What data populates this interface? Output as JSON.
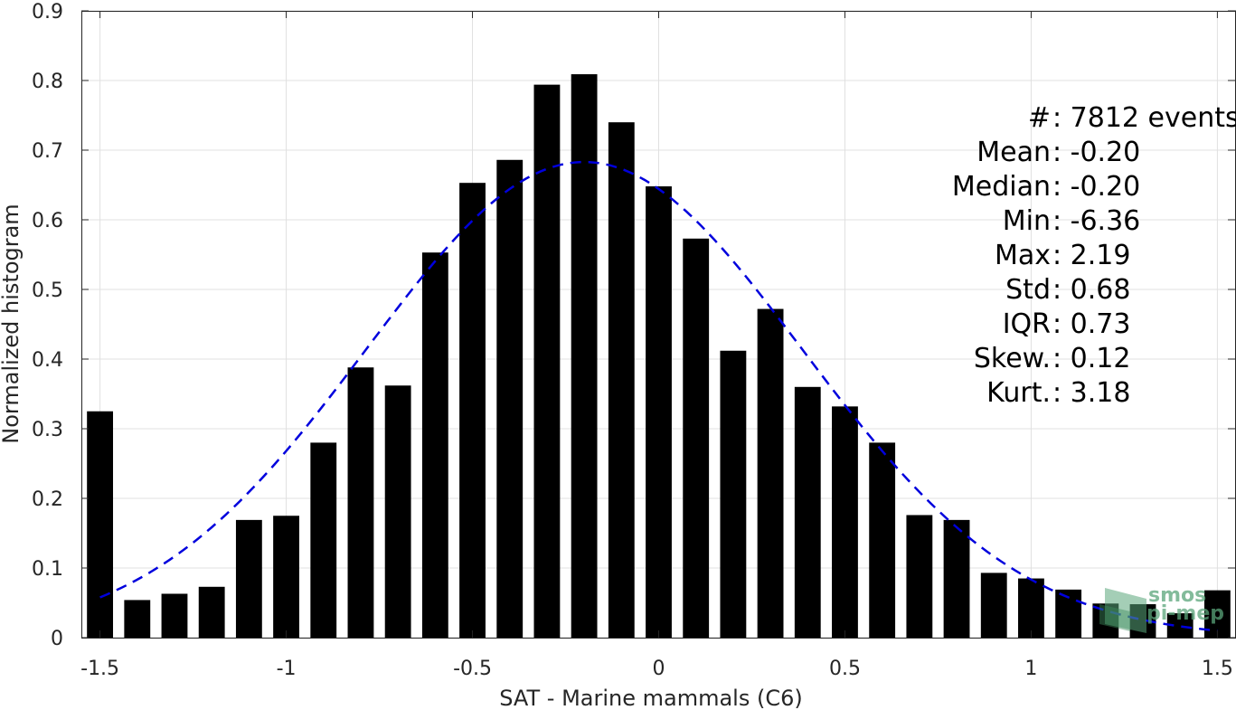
{
  "chart_data": {
    "type": "bar",
    "title": "",
    "xlabel": "SAT - Marine mammals (C6)",
    "ylabel": "Normalized histogram",
    "xlim": [
      -1.55,
      1.55
    ],
    "ylim": [
      0,
      0.9
    ],
    "grid": true,
    "x_ticks": [
      -1.5,
      -1,
      -0.5,
      0,
      0.5,
      1,
      1.5
    ],
    "x_tick_labels": [
      "-1.5",
      "-1",
      "-0.5",
      "0",
      "0.5",
      "1",
      "1.5"
    ],
    "y_ticks": [
      0,
      0.1,
      0.2,
      0.3,
      0.4,
      0.5,
      0.6,
      0.7,
      0.8,
      0.9
    ],
    "y_tick_labels": [
      "0",
      "0.1",
      "0.2",
      "0.3",
      "0.4",
      "0.5",
      "0.6",
      "0.7",
      "0.8",
      "0.9"
    ],
    "bar_width": 0.07,
    "bar_color": "#000000",
    "bars": [
      {
        "x": -1.5,
        "y": 0.325
      },
      {
        "x": -1.4,
        "y": 0.054
      },
      {
        "x": -1.3,
        "y": 0.063
      },
      {
        "x": -1.2,
        "y": 0.073
      },
      {
        "x": -1.1,
        "y": 0.169
      },
      {
        "x": -1.0,
        "y": 0.175
      },
      {
        "x": -0.9,
        "y": 0.28
      },
      {
        "x": -0.8,
        "y": 0.388
      },
      {
        "x": -0.7,
        "y": 0.362
      },
      {
        "x": -0.6,
        "y": 0.553
      },
      {
        "x": -0.5,
        "y": 0.653
      },
      {
        "x": -0.4,
        "y": 0.686
      },
      {
        "x": -0.3,
        "y": 0.794
      },
      {
        "x": -0.2,
        "y": 0.809
      },
      {
        "x": -0.1,
        "y": 0.74
      },
      {
        "x": 0.0,
        "y": 0.648
      },
      {
        "x": 0.1,
        "y": 0.573
      },
      {
        "x": 0.2,
        "y": 0.412
      },
      {
        "x": 0.3,
        "y": 0.472
      },
      {
        "x": 0.4,
        "y": 0.36
      },
      {
        "x": 0.5,
        "y": 0.332
      },
      {
        "x": 0.6,
        "y": 0.28
      },
      {
        "x": 0.7,
        "y": 0.176
      },
      {
        "x": 0.8,
        "y": 0.169
      },
      {
        "x": 0.9,
        "y": 0.093
      },
      {
        "x": 1.0,
        "y": 0.085
      },
      {
        "x": 1.1,
        "y": 0.069
      },
      {
        "x": 1.2,
        "y": 0.049
      },
      {
        "x": 1.3,
        "y": 0.048
      },
      {
        "x": 1.4,
        "y": 0.035
      },
      {
        "x": 1.5,
        "y": 0.068
      }
    ],
    "fit_curve": {
      "style": "dashed",
      "color": "#0000dd",
      "mean": -0.2,
      "std": 0.585,
      "peak": 0.683,
      "x_range": [
        -1.5,
        1.5
      ]
    },
    "stats": [
      {
        "label": "#  ",
        "value": ": 7812 events"
      },
      {
        "label": "Mean ",
        "value": ": -0.20"
      },
      {
        "label": "Median ",
        "value": ": -0.20"
      },
      {
        "label": "Min ",
        "value": ": -6.36"
      },
      {
        "label": "Max ",
        "value": ": 2.19"
      },
      {
        "label": "Std ",
        "value": ": 0.68"
      },
      {
        "label": "IQR ",
        "value": ": 0.73"
      },
      {
        "label": "Skew. ",
        "value": ": 0.12"
      },
      {
        "label": "Kurt. ",
        "value": ": 3.18"
      }
    ]
  },
  "watermark": {
    "line1": "smos",
    "line2": "pi-mep",
    "color": "#5aa57a"
  }
}
